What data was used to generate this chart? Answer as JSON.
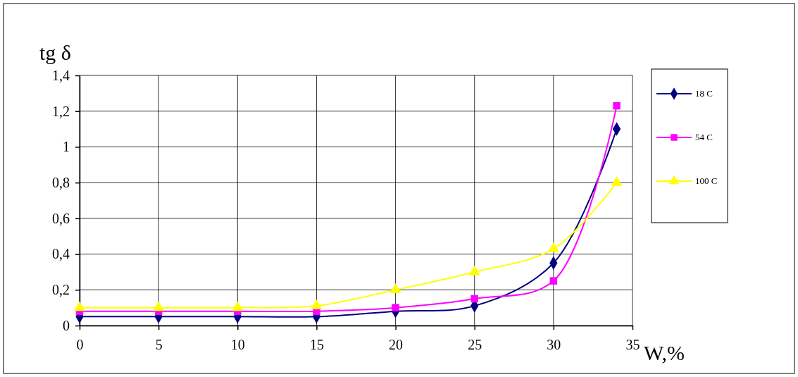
{
  "chart_data": {
    "type": "line",
    "xlabel": "W,%",
    "ylabel": "tg δ",
    "x": [
      0,
      5,
      10,
      15,
      20,
      25,
      30,
      34
    ],
    "series": [
      {
        "name": "18 C",
        "color": "#000080",
        "marker": "diamond",
        "values": [
          0.05,
          0.05,
          0.05,
          0.05,
          0.08,
          0.11,
          0.35,
          1.1
        ]
      },
      {
        "name": "54 C",
        "color": "#ff00ff",
        "marker": "square",
        "values": [
          0.08,
          0.08,
          0.08,
          0.08,
          0.1,
          0.15,
          0.25,
          1.23
        ]
      },
      {
        "name": "100 C",
        "color": "#ffff00",
        "marker": "triangle",
        "values": [
          0.1,
          0.1,
          0.1,
          0.11,
          0.2,
          0.3,
          0.43,
          0.8
        ]
      }
    ],
    "xlim": [
      0,
      35
    ],
    "xticks": [
      0,
      5,
      10,
      15,
      20,
      25,
      30,
      35
    ],
    "ylim": [
      0,
      1.4
    ],
    "yticks": [
      0,
      {
        "value": 0.2,
        "label": "0,2"
      },
      {
        "value": 0.4,
        "label": "0,4"
      },
      {
        "value": 0.6,
        "label": "0,6"
      },
      {
        "value": 0.8,
        "label": "0,8"
      },
      1,
      {
        "value": 1.2,
        "label": "1,2"
      },
      {
        "value": 1.4,
        "label": "1,4"
      }
    ],
    "grid": true,
    "legend": "right",
    "line_style": "solid"
  }
}
